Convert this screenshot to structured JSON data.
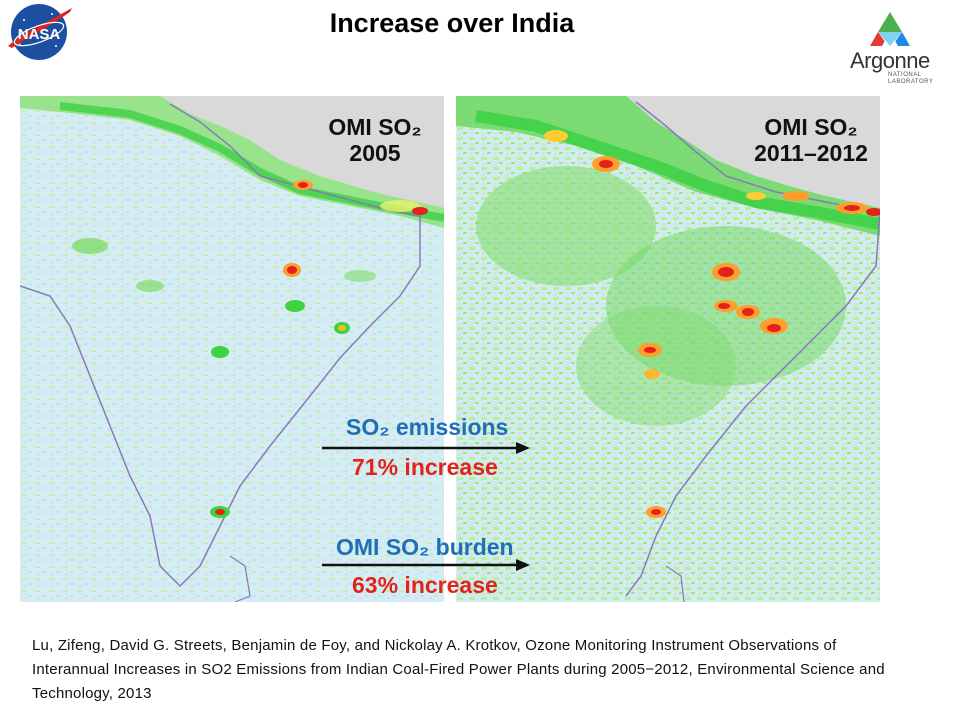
{
  "title": "Increase over India",
  "logos": {
    "left": {
      "name": "NASA",
      "icon": "nasa-meatball-icon"
    },
    "right": {
      "name": "Argonne",
      "sub1": "NATIONAL",
      "sub2": "LABORATORY",
      "icon": "argonne-triangle-icon"
    }
  },
  "panels": [
    {
      "label_line1": "OMI SO₂",
      "label_line2": "2005"
    },
    {
      "label_line1": "OMI SO₂",
      "label_line2": "2011–2012"
    }
  ],
  "annotations": {
    "emissions_label": "SO₂ emissions",
    "emissions_change": "71% increase",
    "burden_label": "OMI SO₂ burden",
    "burden_change": "63% increase"
  },
  "citation": "Lu, Zifeng, David G. Streets, Benjamin de Foy, and Nickolay A. Krotkov, Ozone Monitoring Instrument Observations of Interannual Increases in SO2 Emissions from Indian Coal-Fired Power Plants during 2005−2012, Environmental Science and Technology, 2013",
  "colors": {
    "map_background": "#d3ecf3",
    "land_outside": "#d9d9d9",
    "low_so2": "#c9f2a6",
    "mid_so2": "#3ed43e",
    "high_so2": "#e0241b",
    "emissions_text": "#1f6fb8",
    "increase_text": "#e0241b"
  }
}
